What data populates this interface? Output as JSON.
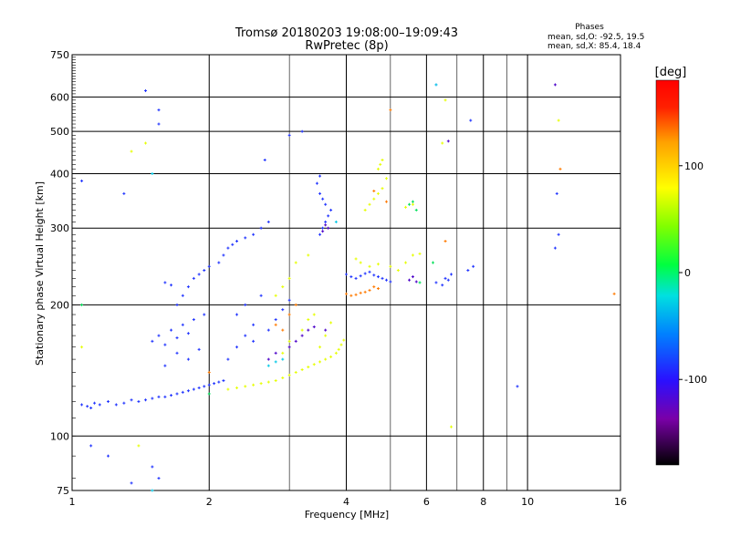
{
  "title_line1": "Tromsø 20180203 19:08:00–19:09:43",
  "title_line2": "RwPretec (8p)",
  "stats": {
    "heading": "Phases",
    "line1": "mean, sd,O: -92.5, 19.5",
    "line2": "mean, sd,X:  85.4, 18.4"
  },
  "chart_data": {
    "type": "scatter",
    "xlabel": "Frequency [MHz]",
    "ylabel": "Stationary phase Virtual Height [km]",
    "x_scale": "log",
    "y_scale": "log",
    "xlim": [
      1,
      16
    ],
    "ylim": [
      75,
      750
    ],
    "x_ticks": [
      1,
      2,
      4,
      6,
      8,
      10,
      16
    ],
    "x_minor_ticks": [
      3,
      5,
      7,
      9
    ],
    "y_ticks": [
      75,
      100,
      200,
      300,
      400,
      500,
      600,
      750
    ],
    "grid": true,
    "colorbar": {
      "label": "[deg]",
      "range": [
        -180,
        180
      ],
      "ticks": [
        -100,
        0,
        100
      ],
      "colormap": [
        "#000000",
        "#7a00a8",
        "#2a10ff",
        "#0080ff",
        "#00e0e0",
        "#00ff40",
        "#80ff00",
        "#ffff00",
        "#ffa000",
        "#ff2000",
        "#ff0000"
      ]
    },
    "series": [
      {
        "mode": "O",
        "phase_deg": -100,
        "color": "#1e32ff",
        "points": [
          [
            1.05,
            118
          ],
          [
            1.08,
            117
          ],
          [
            1.1,
            116
          ],
          [
            1.12,
            119
          ],
          [
            1.15,
            118
          ],
          [
            1.2,
            120
          ],
          [
            1.25,
            118
          ],
          [
            1.3,
            119
          ],
          [
            1.35,
            121
          ],
          [
            1.4,
            120
          ],
          [
            1.45,
            121
          ],
          [
            1.5,
            122
          ],
          [
            1.55,
            123
          ],
          [
            1.6,
            123
          ],
          [
            1.65,
            124
          ],
          [
            1.7,
            125
          ],
          [
            1.75,
            126
          ],
          [
            1.8,
            127
          ],
          [
            1.85,
            128
          ],
          [
            1.9,
            129
          ],
          [
            1.95,
            130
          ],
          [
            2.0,
            131
          ],
          [
            2.05,
            132
          ],
          [
            2.1,
            133
          ],
          [
            2.15,
            134
          ],
          [
            1.5,
            165
          ],
          [
            1.55,
            170
          ],
          [
            1.6,
            162
          ],
          [
            1.65,
            175
          ],
          [
            1.7,
            168
          ],
          [
            1.75,
            180
          ],
          [
            1.8,
            172
          ],
          [
            1.85,
            185
          ],
          [
            1.9,
            158
          ],
          [
            1.95,
            190
          ],
          [
            1.6,
            145
          ],
          [
            1.7,
            155
          ],
          [
            1.8,
            150
          ],
          [
            1.7,
            200
          ],
          [
            1.75,
            210
          ],
          [
            1.8,
            220
          ],
          [
            1.85,
            230
          ],
          [
            1.9,
            235
          ],
          [
            1.95,
            240
          ],
          [
            2.0,
            245
          ],
          [
            1.6,
            225
          ],
          [
            1.65,
            222
          ],
          [
            2.1,
            250
          ],
          [
            2.15,
            260
          ],
          [
            2.2,
            270
          ],
          [
            2.25,
            275
          ],
          [
            2.3,
            280
          ],
          [
            2.4,
            285
          ],
          [
            2.5,
            290
          ],
          [
            2.6,
            300
          ],
          [
            2.7,
            310
          ],
          [
            2.2,
            150
          ],
          [
            2.3,
            160
          ],
          [
            2.4,
            170
          ],
          [
            2.5,
            180
          ],
          [
            2.3,
            190
          ],
          [
            2.4,
            200
          ],
          [
            2.6,
            210
          ],
          [
            2.5,
            165
          ],
          [
            2.7,
            175
          ],
          [
            2.8,
            185
          ],
          [
            2.9,
            195
          ],
          [
            3.0,
            205
          ],
          [
            3.5,
            290
          ],
          [
            3.55,
            300
          ],
          [
            3.6,
            310
          ],
          [
            3.65,
            320
          ],
          [
            3.7,
            330
          ],
          [
            3.6,
            340
          ],
          [
            3.55,
            350
          ],
          [
            3.5,
            360
          ],
          [
            3.45,
            380
          ],
          [
            3.5,
            395
          ],
          [
            4.0,
            235
          ],
          [
            4.1,
            232
          ],
          [
            4.2,
            230
          ],
          [
            4.3,
            233
          ],
          [
            4.4,
            236
          ],
          [
            4.5,
            238
          ],
          [
            4.6,
            234
          ],
          [
            4.7,
            232
          ],
          [
            4.8,
            230
          ],
          [
            4.9,
            228
          ],
          [
            5.0,
            226
          ],
          [
            6.3,
            225
          ],
          [
            6.5,
            222
          ],
          [
            6.6,
            230
          ],
          [
            6.7,
            228
          ],
          [
            6.8,
            235
          ],
          [
            7.4,
            240
          ],
          [
            7.6,
            245
          ],
          [
            1.05,
            385
          ],
          [
            1.3,
            360
          ],
          [
            1.45,
            620
          ],
          [
            1.55,
            520
          ],
          [
            1.55,
            560
          ],
          [
            2.65,
            430
          ],
          [
            3.0,
            490
          ],
          [
            3.2,
            500
          ],
          [
            1.1,
            95
          ],
          [
            1.2,
            90
          ],
          [
            1.5,
            85
          ],
          [
            1.35,
            78
          ],
          [
            1.55,
            80
          ],
          [
            9.5,
            130
          ],
          [
            11.6,
            360
          ],
          [
            11.7,
            290
          ],
          [
            11.5,
            270
          ],
          [
            7.5,
            530
          ],
          [
            6.3,
            640
          ]
        ]
      },
      {
        "mode": "O-low",
        "phase_deg": -130,
        "color": "#4b00c8",
        "points": [
          [
            3.0,
            160
          ],
          [
            3.1,
            165
          ],
          [
            3.2,
            170
          ],
          [
            3.3,
            175
          ],
          [
            3.4,
            178
          ],
          [
            2.7,
            150
          ],
          [
            2.8,
            155
          ],
          [
            3.6,
            175
          ],
          [
            3.55,
            295
          ],
          [
            3.65,
            300
          ],
          [
            3.6,
            305
          ],
          [
            5.5,
            228
          ],
          [
            5.6,
            232
          ],
          [
            5.7,
            226
          ],
          [
            6.7,
            475
          ],
          [
            11.5,
            640
          ]
        ]
      },
      {
        "mode": "X",
        "phase_deg": 95,
        "color": "#e6ff00",
        "points": [
          [
            2.2,
            128
          ],
          [
            2.3,
            129
          ],
          [
            2.4,
            130
          ],
          [
            2.5,
            131
          ],
          [
            2.6,
            132
          ],
          [
            2.7,
            133
          ],
          [
            2.8,
            134
          ],
          [
            2.9,
            136
          ],
          [
            3.0,
            138
          ],
          [
            3.1,
            140
          ],
          [
            3.2,
            142
          ],
          [
            3.3,
            144
          ],
          [
            3.4,
            146
          ],
          [
            3.5,
            148
          ],
          [
            3.6,
            150
          ],
          [
            3.7,
            152
          ],
          [
            3.8,
            155
          ],
          [
            3.85,
            158
          ],
          [
            3.9,
            162
          ],
          [
            3.95,
            166
          ],
          [
            2.9,
            155
          ],
          [
            3.0,
            165
          ],
          [
            3.2,
            175
          ],
          [
            3.3,
            185
          ],
          [
            3.4,
            190
          ],
          [
            3.5,
            160
          ],
          [
            3.6,
            170
          ],
          [
            3.7,
            182
          ],
          [
            2.8,
            210
          ],
          [
            2.9,
            220
          ],
          [
            3.0,
            230
          ],
          [
            3.1,
            250
          ],
          [
            3.3,
            260
          ],
          [
            4.4,
            330
          ],
          [
            4.5,
            340
          ],
          [
            4.6,
            350
          ],
          [
            4.7,
            360
          ],
          [
            4.8,
            370
          ],
          [
            4.9,
            390
          ],
          [
            4.7,
            410
          ],
          [
            4.75,
            420
          ],
          [
            4.8,
            430
          ],
          [
            4.2,
            255
          ],
          [
            4.3,
            250
          ],
          [
            4.5,
            245
          ],
          [
            4.7,
            248
          ],
          [
            5.0,
            245
          ],
          [
            5.2,
            240
          ],
          [
            5.4,
            250
          ],
          [
            5.6,
            260
          ],
          [
            5.8,
            262
          ],
          [
            5.4,
            335
          ],
          [
            5.6,
            340
          ],
          [
            6.6,
            590
          ],
          [
            6.5,
            470
          ],
          [
            6.8,
            105
          ],
          [
            11.7,
            530
          ],
          [
            1.35,
            450
          ],
          [
            1.45,
            470
          ],
          [
            1.05,
            160
          ],
          [
            1.4,
            95
          ]
        ]
      },
      {
        "mode": "X-high",
        "phase_deg": 150,
        "color": "#ff7a00",
        "points": [
          [
            2.8,
            180
          ],
          [
            2.9,
            175
          ],
          [
            3.0,
            190
          ],
          [
            3.1,
            200
          ],
          [
            2.0,
            140
          ],
          [
            4.0,
            212
          ],
          [
            4.1,
            210
          ],
          [
            4.2,
            211
          ],
          [
            4.3,
            213
          ],
          [
            4.4,
            214
          ],
          [
            4.5,
            216
          ],
          [
            4.6,
            220
          ],
          [
            4.7,
            218
          ],
          [
            4.9,
            345
          ],
          [
            4.6,
            365
          ],
          [
            5.0,
            560
          ],
          [
            6.6,
            280
          ],
          [
            11.8,
            410
          ],
          [
            15.5,
            212
          ]
        ]
      },
      {
        "mode": "near-zero",
        "phase_deg": 20,
        "color": "#00e05a",
        "points": [
          [
            5.5,
            340
          ],
          [
            5.6,
            345
          ],
          [
            5.7,
            330
          ],
          [
            5.8,
            225
          ],
          [
            6.2,
            250
          ],
          [
            1.05,
            200
          ],
          [
            2.0,
            125
          ]
        ]
      },
      {
        "mode": "cyan",
        "phase_deg": -40,
        "color": "#00c8e6",
        "points": [
          [
            2.7,
            145
          ],
          [
            2.8,
            148
          ],
          [
            2.9,
            150
          ],
          [
            1.5,
            75
          ],
          [
            1.5,
            400
          ],
          [
            3.8,
            310
          ],
          [
            6.3,
            640
          ]
        ]
      }
    ]
  }
}
